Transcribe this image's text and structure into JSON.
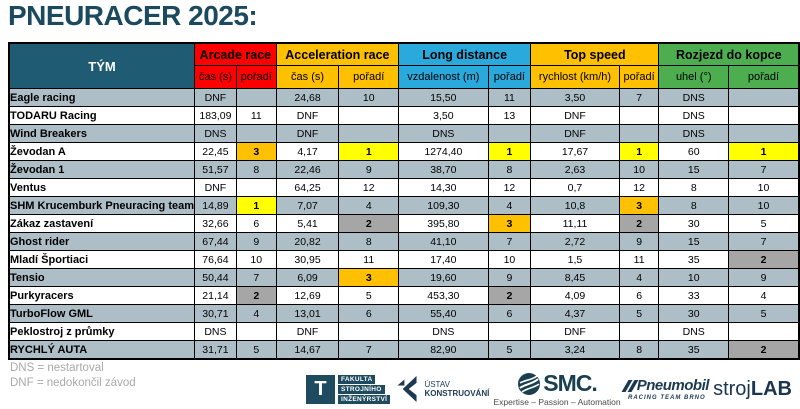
{
  "title": "PNEURACER 2025:",
  "table": {
    "team_header": "TÝM",
    "groups": [
      {
        "label": "Arcade race",
        "color": "#FE0000",
        "sub": [
          "čas (s)",
          "pořadí"
        ]
      },
      {
        "label": "Acceleration race",
        "color": "#FFC000",
        "sub": [
          "čas (s)",
          "pořadí"
        ]
      },
      {
        "label": "Long distance",
        "color": "#29A9DC",
        "sub": [
          "vzdalenost (m)",
          "pořadí"
        ]
      },
      {
        "label": "Top speed",
        "color": "#FFC000",
        "sub": [
          "rychlost (km/h)",
          "pořadí"
        ]
      },
      {
        "label": "Rozjezd do kopce",
        "color": "#4CAE4F",
        "sub": [
          "uhel (°)",
          "pořadí"
        ]
      }
    ],
    "rows": [
      {
        "team": "Eagle racing",
        "values": [
          "DNF",
          "",
          "24,68",
          "10",
          "15,50",
          "11",
          "3,50",
          "7",
          "DNS",
          ""
        ]
      },
      {
        "team": "TODARU Racing",
        "values": [
          "183,09",
          "11",
          "DNF",
          "",
          "3,50",
          "13",
          "DNF",
          "",
          "DNS",
          ""
        ]
      },
      {
        "team": "Wind Breakers",
        "values": [
          "DNS",
          "",
          "DNF",
          "",
          "DNS",
          "",
          "DNF",
          "",
          "DNS",
          ""
        ]
      },
      {
        "team": "Ževodan A",
        "values": [
          "22,45",
          "3",
          "4,17",
          "1",
          "1274,40",
          "1",
          "17,67",
          "1",
          "60",
          "1"
        ]
      },
      {
        "team": "Ževodan 1",
        "values": [
          "51,57",
          "8",
          "22,46",
          "9",
          "38,70",
          "8",
          "2,63",
          "10",
          "15",
          "7"
        ]
      },
      {
        "team": "Ventus",
        "values": [
          "DNF",
          "",
          "64,25",
          "12",
          "14,30",
          "12",
          "0,7",
          "12",
          "8",
          "10"
        ]
      },
      {
        "team": "SHM Krucemburk Pneuracing team",
        "values": [
          "14,89",
          "1",
          "7,07",
          "4",
          "109,30",
          "4",
          "10,8",
          "3",
          "8",
          "10"
        ]
      },
      {
        "team": "Zákaz zastavení",
        "values": [
          "32,66",
          "6",
          "5,41",
          "2",
          "395,80",
          "3",
          "11,11",
          "2",
          "30",
          "5"
        ]
      },
      {
        "team": "Ghost rider",
        "values": [
          "67,44",
          "9",
          "20,82",
          "8",
          "41,10",
          "7",
          "2,72",
          "9",
          "15",
          "7"
        ]
      },
      {
        "team": "Mladí Športiaci",
        "values": [
          "76,64",
          "10",
          "30,95",
          "11",
          "17,40",
          "10",
          "1,5",
          "11",
          "35",
          "2"
        ]
      },
      {
        "team": "Tensio",
        "values": [
          "50,44",
          "7",
          "6,09",
          "3",
          "19,60",
          "9",
          "8,45",
          "4",
          "10",
          "9"
        ]
      },
      {
        "team": "Purkyracers",
        "values": [
          "21,14",
          "2",
          "12,69",
          "5",
          "453,30",
          "2",
          "4,09",
          "6",
          "33",
          "4"
        ]
      },
      {
        "team": "TurboFlow GML",
        "values": [
          "30,71",
          "4",
          "13,01",
          "6",
          "55,40",
          "6",
          "4,37",
          "5",
          "30",
          "5"
        ]
      },
      {
        "team": "Peklostroj z průmky",
        "values": [
          "DNS",
          "",
          "DNF",
          "",
          "DNS",
          "",
          "DNF",
          "",
          "DNS",
          ""
        ]
      },
      {
        "team": "RYCHLÝ AUTA",
        "values": [
          "31,71",
          "5",
          "14,67",
          "7",
          "82,90",
          "5",
          "3,24",
          "8",
          "35",
          "2"
        ]
      }
    ]
  },
  "medal_colors": {
    "1": "#FFFF00",
    "2": "#A6A6A6",
    "3": "#FFC000"
  },
  "colors": {
    "header_teal": "#1F5B72",
    "row_stripe": "#AEBEC7",
    "title": "#1B4A5F"
  },
  "legend": {
    "dns": "DNS = nestartoval",
    "dnf": "DNF = nedokončil závod"
  },
  "logos": {
    "fsi": {
      "letter": "T",
      "line1": "FAKULTA",
      "line2": "STROJNÍHO",
      "line3": "INŽENÝRSTVÍ"
    },
    "uk": {
      "line1": "ÚSTAV",
      "line2": "KONSTRUOVÁNÍ"
    },
    "smc": {
      "word": "SMC.",
      "tagline": "Expertise – Passion – Automation"
    },
    "pneumobil": {
      "word": "Pneumobil",
      "subtext": "RACING TEAM BRNO"
    },
    "strojlab": {
      "regular": "stroj",
      "bold": "LAB"
    }
  }
}
